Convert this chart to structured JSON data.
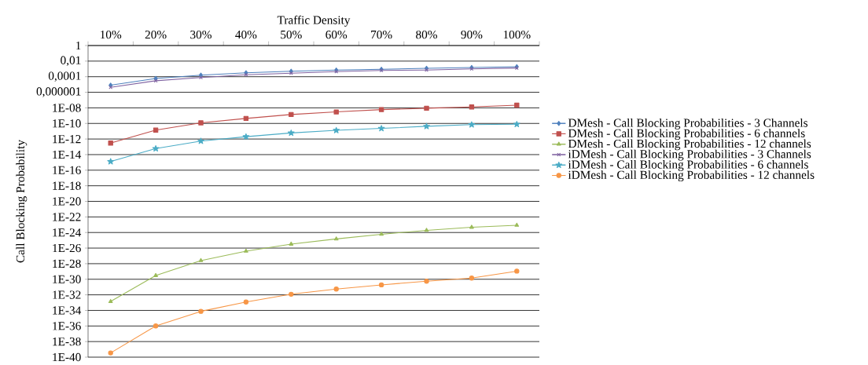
{
  "chart_data": {
    "type": "line",
    "xlabel": "Traffic Density",
    "ylabel": "Call Blocking Probability",
    "categories": [
      "10%",
      "20%",
      "30%",
      "40%",
      "50%",
      "60%",
      "70%",
      "80%",
      "90%",
      "100%"
    ],
    "series": [
      {
        "name": "DMesh - Call Blocking Probabilities - 3 Channels",
        "color": "#4f81bd",
        "marker": "diamond",
        "values": [
          8e-06,
          6e-05,
          0.00016,
          0.00032,
          0.0005,
          0.0007,
          0.0009,
          0.0012,
          0.0015,
          0.0019
        ]
      },
      {
        "name": "DMesh - Call Blocking Probabilities - 6 channels",
        "color": "#c0504d",
        "marker": "square",
        "values": [
          3e-13,
          1.4e-11,
          1.2e-10,
          4.4e-10,
          1.4e-09,
          3e-09,
          6e-09,
          9e-09,
          1.3e-08,
          2.2e-08
        ]
      },
      {
        "name": "DMesh - Call Blocking Probabilities - 12 channels",
        "color": "#9bbb59",
        "marker": "triangle",
        "values": [
          1.4e-33,
          3e-30,
          2.5e-28,
          4e-27,
          3.2e-26,
          1.5e-25,
          6e-25,
          1.9e-24,
          4.7e-24,
          8.5e-24
        ]
      },
      {
        "name": "iDMesh - Call Blocking Probabilities - 3 Channels",
        "color": "#8064a2",
        "marker": "cross",
        "values": [
          4.4e-06,
          3e-05,
          8e-05,
          0.00018,
          0.00028,
          0.00045,
          0.00063,
          0.0007,
          0.001,
          0.0013
        ]
      },
      {
        "name": "iDMesh - Call Blocking Probabilities - 6 channels",
        "color": "#4bacc6",
        "marker": "star",
        "values": [
          1.3e-15,
          6e-14,
          5.5e-13,
          2e-12,
          6e-12,
          1.3e-11,
          2.3e-11,
          4.3e-11,
          7e-11,
          7.8e-11
        ]
      },
      {
        "name": "iDMesh - Call Blocking Probabilities - 12 channels",
        "color": "#f79646",
        "marker": "circle",
        "values": [
          3.5e-40,
          1e-36,
          7.6e-35,
          1.2e-33,
          1.2e-32,
          5.5e-32,
          1.9e-31,
          5.6e-31,
          1.4e-30,
          1.1e-29
        ]
      }
    ],
    "log": "y",
    "ylim": [
      1e-40,
      1
    ],
    "yticks": [
      1,
      {
        "value": 0.01,
        "label": "0,01"
      },
      {
        "value": 0.0001,
        "label": "0,0001"
      },
      {
        "value": 1e-06,
        "label": "0,000001"
      },
      {
        "value": 1e-08,
        "label": "1E-08"
      },
      {
        "value": 1e-10,
        "label": "1E-10"
      },
      {
        "value": 1e-12,
        "label": "1E-12"
      },
      {
        "value": 1e-14,
        "label": "1E-14"
      },
      {
        "value": 1e-16,
        "label": "1E-16"
      },
      {
        "value": 1e-18,
        "label": "1E-18"
      },
      {
        "value": 1e-20,
        "label": "1E-20"
      },
      {
        "value": 1e-22,
        "label": "1E-22"
      },
      {
        "value": 1e-24,
        "label": "1E-24"
      },
      {
        "value": 1e-26,
        "label": "1E-26"
      },
      {
        "value": 1e-28,
        "label": "1E-28"
      },
      {
        "value": 1e-30,
        "label": "1E-30"
      },
      {
        "value": 1e-32,
        "label": "1E-32"
      },
      {
        "value": 1e-34,
        "label": "1E-34"
      },
      {
        "value": 1e-36,
        "label": "1E-36"
      },
      {
        "value": 1e-38,
        "label": "1E-38"
      },
      {
        "value": 1e-40,
        "label": "1E-40"
      }
    ],
    "grid": "y",
    "legend": "right",
    "line_style": "solid"
  }
}
